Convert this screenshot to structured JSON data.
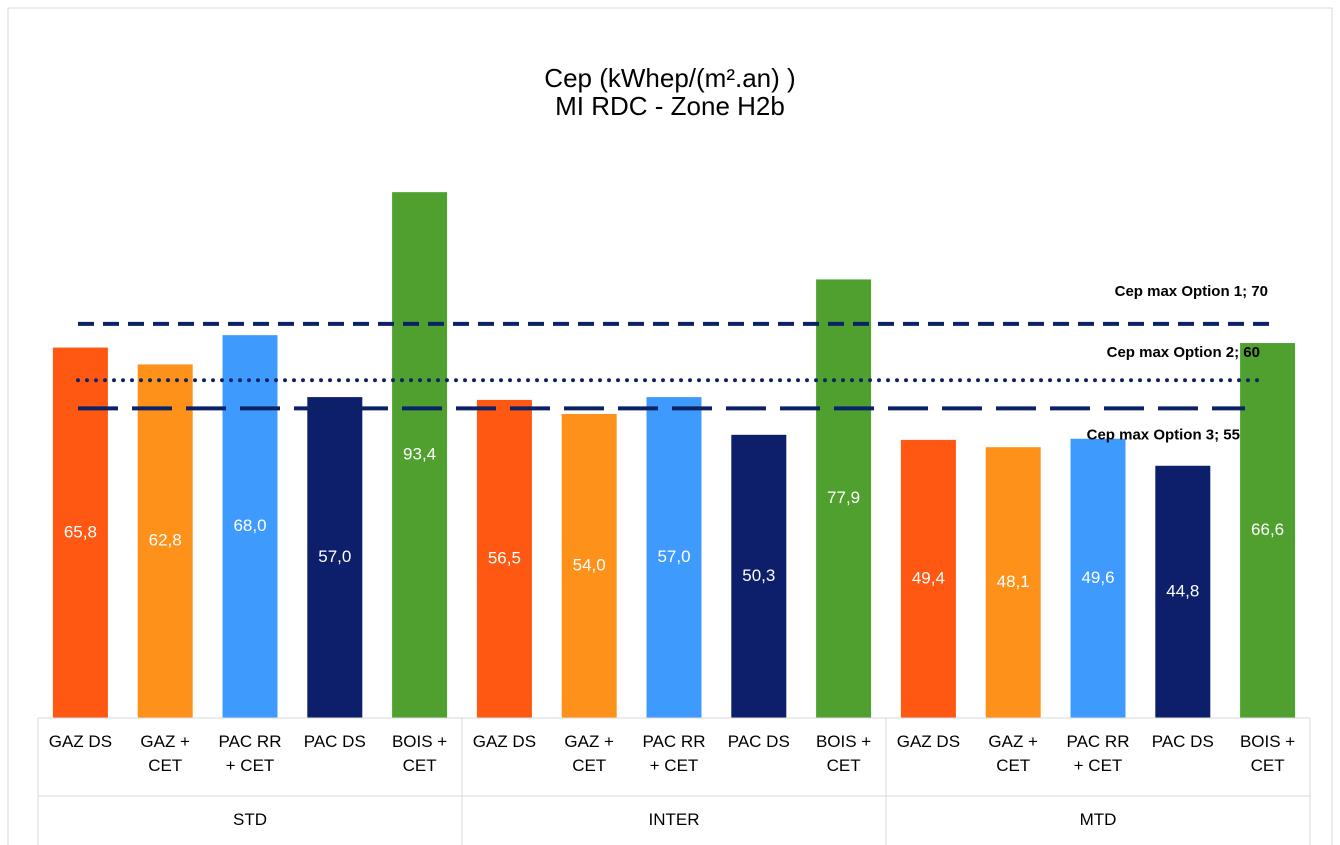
{
  "chart_data": {
    "type": "bar",
    "title": "Cep (kWhep/(m².an) )",
    "subtitle": "MI RDC - Zone H2b",
    "groups": [
      "STD",
      "INTER",
      "MTD"
    ],
    "categories": [
      "GAZ DS",
      "GAZ + CET",
      "PAC RR + CET",
      "PAC DS",
      "BOIS + CET",
      "GAZ DS",
      "GAZ + CET",
      "PAC RR + CET",
      "PAC DS",
      "BOIS + CET",
      "GAZ DS",
      "GAZ + CET",
      "PAC RR + CET",
      "PAC DS",
      "BOIS + CET"
    ],
    "values": [
      65.8,
      62.8,
      68.0,
      57.0,
      93.4,
      56.5,
      54.0,
      57.0,
      50.3,
      77.9,
      49.4,
      48.1,
      49.6,
      44.8,
      66.6
    ],
    "value_labels": [
      "65,8",
      "62,8",
      "68,0",
      "57,0",
      "93,4",
      "56,5",
      "54,0",
      "57,0",
      "50,3",
      "77,9",
      "49,4",
      "48,1",
      "49,6",
      "44,8",
      "66,6"
    ],
    "colors": [
      "#fe5813",
      "#fe9119",
      "#3e9bfd",
      "#0d1f6b",
      "#50a030",
      "#fe5813",
      "#fe9119",
      "#3e9bfd",
      "#0d1f6b",
      "#50a030",
      "#fe5813",
      "#fe9119",
      "#3e9bfd",
      "#0d1f6b",
      "#50a030"
    ],
    "ylim": [
      0,
      100
    ],
    "reference_lines": [
      {
        "label": "Cep max Option 1; 70",
        "value": 70,
        "style": "dashed",
        "color": "#0b2366"
      },
      {
        "label": "Cep max Option 2; 60",
        "value": 60,
        "style": "dotted",
        "color": "#0b2366"
      },
      {
        "label": "Cep max Option 3; 55",
        "value": 55,
        "style": "long-dashed",
        "color": "#0b2366"
      }
    ]
  }
}
